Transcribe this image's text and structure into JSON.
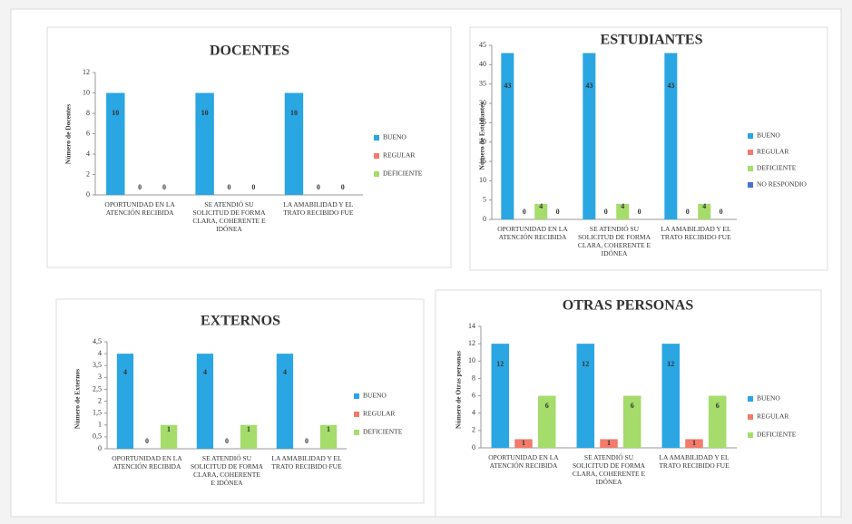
{
  "chart_data": [
    {
      "type": "bar",
      "title": "DOCENTES",
      "y_label": "Número de Docentes",
      "categories": [
        "OPORTUNIDAD EN LA ATENCIÓN RECIBIDA",
        "SE ATENDIÓ SU SOLICITUD DE FORMA CLARA, COHERENTE E IDÓNEA",
        "LA AMABILIDAD Y EL TRATO RECIBIDO FUE"
      ],
      "series": [
        {
          "name": "BUENO",
          "color": "#2aa6e2",
          "values": [
            10,
            10,
            10
          ]
        },
        {
          "name": "REGULAR",
          "color": "#f27b6b",
          "values": [
            0,
            0,
            0
          ]
        },
        {
          "name": "DEFICIENTE",
          "color": "#a5dc6b",
          "values": [
            0,
            0,
            0
          ]
        }
      ],
      "ylim": [
        0,
        12
      ],
      "yticks": [
        0,
        2,
        4,
        6,
        8,
        10,
        12
      ],
      "grid": false
    },
    {
      "type": "bar",
      "title": "ESTUDIANTES",
      "y_label": "Número de Estudiantes",
      "categories": [
        "OPORTUNIDAD EN LA ATENCIÓN RECIBIDA",
        "SE ATENDIÓ SU SOLICITUD DE FORMA CLARA, COHERENTE E IDÓNEA",
        "LA AMABILIDAD Y EL TRATO RECIBIDO FUE"
      ],
      "series": [
        {
          "name": "BUENO",
          "color": "#2aa6e2",
          "values": [
            43,
            43,
            43
          ]
        },
        {
          "name": "REGULAR",
          "color": "#f27b6b",
          "values": [
            0,
            0,
            0
          ]
        },
        {
          "name": "DEFICIENTE",
          "color": "#a5dc6b",
          "values": [
            4,
            4,
            4
          ]
        },
        {
          "name": "NO RESPONDIO",
          "color": "#4a6fd0",
          "values": [
            0,
            0,
            0
          ]
        }
      ],
      "ylim": [
        0,
        45
      ],
      "yticks": [
        0,
        5,
        10,
        15,
        20,
        25,
        30,
        35,
        40,
        45
      ],
      "grid": false
    },
    {
      "type": "bar",
      "title": "EXTERNOS",
      "y_label": "Número de Externos",
      "categories": [
        "OPORTUNIDAD EN LA ATENCIÓN RECIBIDA",
        "SE ATENDIÓ SU SOLICITUD DE FORMA CLARA, COHERENTE E IDÓNEA",
        "LA AMABILIDAD Y EL TRATO RECIBIDO FUE"
      ],
      "series": [
        {
          "name": "BUENO",
          "color": "#2aa6e2",
          "values": [
            4,
            4,
            4
          ]
        },
        {
          "name": "REGULAR",
          "color": "#f27b6b",
          "values": [
            0,
            0,
            0
          ]
        },
        {
          "name": "DEFICIENTE",
          "color": "#a5dc6b",
          "values": [
            1,
            1,
            1
          ]
        }
      ],
      "ylim": [
        0,
        4.5
      ],
      "yticks": [
        0,
        {
          "value": 0.5,
          "label": "0,5"
        },
        1,
        {
          "value": 1.5,
          "label": "1,5"
        },
        2,
        {
          "value": 2.5,
          "label": "2,5"
        },
        3,
        {
          "value": 3.5,
          "label": "3,5"
        },
        4,
        {
          "value": 4.5,
          "label": "4,5"
        }
      ],
      "grid": false
    },
    {
      "type": "bar",
      "title": "OTRAS PERSONAS",
      "y_label": "Número de Otras personas",
      "categories": [
        "OPORTUNIDAD EN LA ATENCIÓN RECIBIDA",
        "SE ATENDIÓ SU SOLICITUD DE FORMA CLARA, COHERENTE E IDÓNEA",
        "LA AMABILIDAD Y EL TRATO RECIBIDO FUE"
      ],
      "series": [
        {
          "name": "BUENO",
          "color": "#2aa6e2",
          "values": [
            12,
            12,
            12
          ]
        },
        {
          "name": "REGULAR",
          "color": "#f27b6b",
          "values": [
            1,
            1,
            1
          ]
        },
        {
          "name": "DEFICIENTE",
          "color": "#a5dc6b",
          "values": [
            6,
            6,
            6
          ]
        }
      ],
      "ylim": [
        0,
        14
      ],
      "yticks": [
        0,
        2,
        4,
        6,
        8,
        10,
        12,
        14
      ],
      "grid": false
    }
  ]
}
